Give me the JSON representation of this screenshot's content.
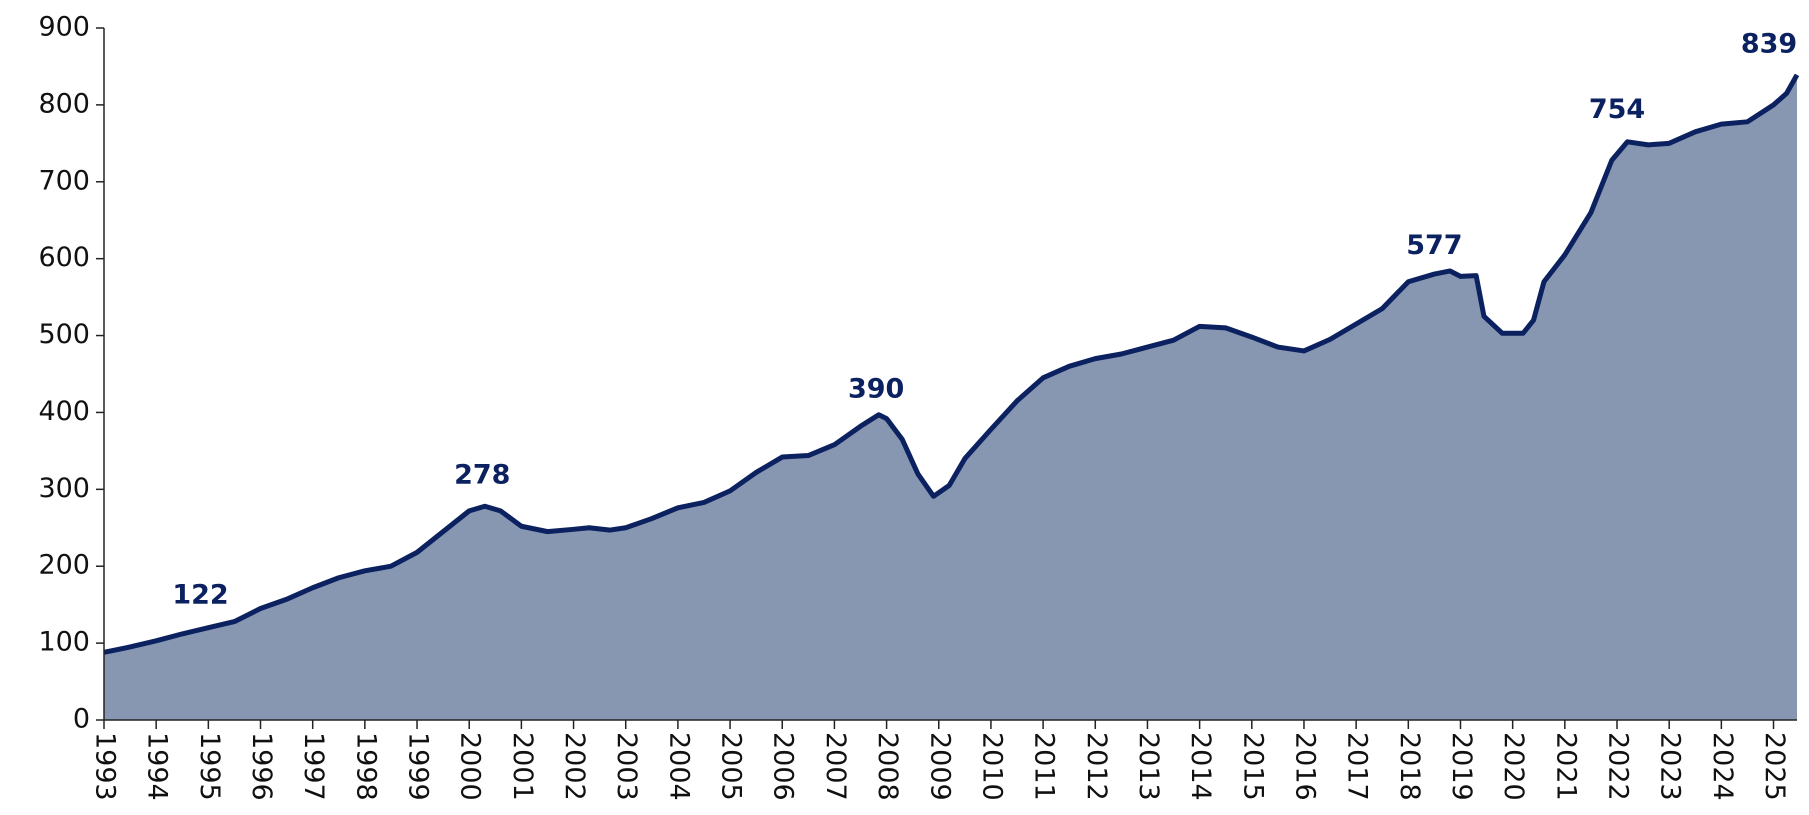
{
  "chart_data": {
    "type": "area",
    "series": [
      {
        "color": "#0b2160",
        "fill": "#8797b2",
        "x": [
          1993.0,
          1993.5,
          1994.0,
          1994.5,
          1995.0,
          1995.5,
          1996.0,
          1996.5,
          1997.0,
          1997.5,
          1998.0,
          1998.5,
          1999.0,
          1999.5,
          2000.0,
          2000.3,
          2000.6,
          2001.0,
          2001.5,
          2002.0,
          2002.3,
          2002.7,
          2003.0,
          2003.5,
          2004.0,
          2004.5,
          2005.0,
          2005.5,
          2006.0,
          2006.5,
          2007.0,
          2007.5,
          2007.85,
          2008.0,
          2008.3,
          2008.6,
          2008.9,
          2009.2,
          2009.5,
          2010.0,
          2010.5,
          2011.0,
          2011.5,
          2012.0,
          2012.5,
          2013.0,
          2013.5,
          2014.0,
          2014.5,
          2015.0,
          2015.5,
          2016.0,
          2016.5,
          2017.0,
          2017.5,
          2018.0,
          2018.5,
          2018.8,
          2019.0,
          2019.3,
          2019.45,
          2019.8,
          2020.2,
          2020.4,
          2020.6,
          2021.0,
          2021.5,
          2021.9,
          2022.2,
          2022.6,
          2023.0,
          2023.5,
          2024.0,
          2024.5,
          2025.0,
          2025.25,
          2025.45
        ],
        "values": [
          88,
          95,
          103,
          112,
          120,
          128,
          145,
          157,
          172,
          185,
          194,
          200,
          218,
          245,
          272,
          278,
          272,
          252,
          245,
          248,
          250,
          247,
          250,
          262,
          276,
          283,
          298,
          322,
          342,
          344,
          358,
          382,
          397,
          392,
          365,
          320,
          291,
          305,
          340,
          378,
          415,
          445,
          460,
          470,
          476,
          485,
          494,
          512,
          510,
          498,
          485,
          480,
          495,
          515,
          535,
          570,
          580,
          584,
          577,
          578,
          525,
          503,
          503,
          520,
          570,
          605,
          660,
          728,
          752,
          748,
          750,
          765,
          775,
          778,
          800,
          815,
          839
        ]
      }
    ],
    "annotations": [
      {
        "x": 1994.85,
        "value": 122
      },
      {
        "x": 2000.25,
        "value": 278
      },
      {
        "x": 2007.8,
        "value": 390
      },
      {
        "x": 2018.5,
        "value": 577
      },
      {
        "x": 2022.0,
        "value": 754
      },
      {
        "x": 2025.35,
        "value": 839
      }
    ],
    "xlim": [
      1993,
      2025.45
    ],
    "xticks": [
      1993,
      1994,
      1995,
      1996,
      1997,
      1998,
      1999,
      2000,
      2001,
      2002,
      2003,
      2004,
      2005,
      2006,
      2007,
      2008,
      2009,
      2010,
      2011,
      2012,
      2013,
      2014,
      2015,
      2016,
      2017,
      2018,
      2019,
      2020,
      2021,
      2022,
      2023,
      2024,
      2025
    ],
    "ylim": [
      0,
      900
    ],
    "yticks": [
      0,
      100,
      200,
      300,
      400,
      500,
      600,
      700,
      800,
      900
    ]
  }
}
